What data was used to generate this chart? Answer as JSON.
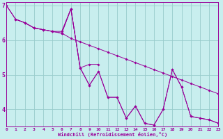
{
  "background_color": "#c8eeee",
  "grid_color": "#99cccc",
  "line_color": "#990099",
  "xlabel": "Windchill (Refroidissement éolien,°C)",
  "xlim": [
    0,
    23
  ],
  "ylim": [
    3.5,
    7.1
  ],
  "yticks": [
    4,
    5,
    6,
    7
  ],
  "xticks": [
    0,
    1,
    2,
    3,
    4,
    5,
    6,
    7,
    8,
    9,
    10,
    11,
    12,
    13,
    14,
    15,
    16,
    17,
    18,
    19,
    20,
    21,
    22,
    23
  ],
  "lines": [
    {
      "x": [
        0,
        1,
        2,
        3,
        4,
        5,
        6,
        7,
        8,
        9,
        10,
        11,
        12,
        13,
        14,
        15,
        16,
        17,
        18,
        19,
        20,
        21,
        22,
        23
      ],
      "y": [
        7.0,
        6.6,
        6.5,
        6.35,
        6.3,
        6.25,
        6.2,
        6.05,
        5.95,
        5.85,
        5.75,
        5.65,
        5.55,
        5.45,
        5.35,
        5.25,
        5.15,
        5.05,
        4.95,
        4.85,
        4.75,
        4.65,
        4.55,
        4.45
      ]
    },
    {
      "x": [
        0,
        1,
        2,
        3,
        4,
        5,
        6,
        7,
        8,
        9,
        10,
        11,
        12,
        13,
        14,
        15,
        16,
        17,
        18,
        19,
        20,
        21,
        22,
        23
      ],
      "y": [
        7.0,
        6.6,
        6.5,
        6.35,
        6.3,
        6.25,
        6.2,
        6.9,
        5.2,
        4.7,
        5.1,
        4.35,
        4.35,
        3.75,
        4.1,
        3.6,
        3.55,
        4.0,
        5.15,
        4.65,
        3.8,
        3.75,
        3.7,
        3.6
      ]
    },
    {
      "x": [
        1,
        2,
        3,
        4,
        5,
        6,
        7,
        8,
        9,
        10
      ],
      "y": [
        6.6,
        6.5,
        6.35,
        6.3,
        6.25,
        6.25,
        6.9,
        5.2,
        5.3,
        5.3
      ]
    },
    {
      "x": [
        6,
        7,
        8,
        9,
        10,
        11,
        12,
        13,
        14,
        15,
        16,
        17,
        18,
        19,
        20,
        21,
        22,
        23
      ],
      "y": [
        6.2,
        6.9,
        5.2,
        4.7,
        5.1,
        4.35,
        4.35,
        3.75,
        4.1,
        3.6,
        3.55,
        4.0,
        5.15,
        4.65,
        3.8,
        3.75,
        3.7,
        3.6
      ]
    }
  ]
}
